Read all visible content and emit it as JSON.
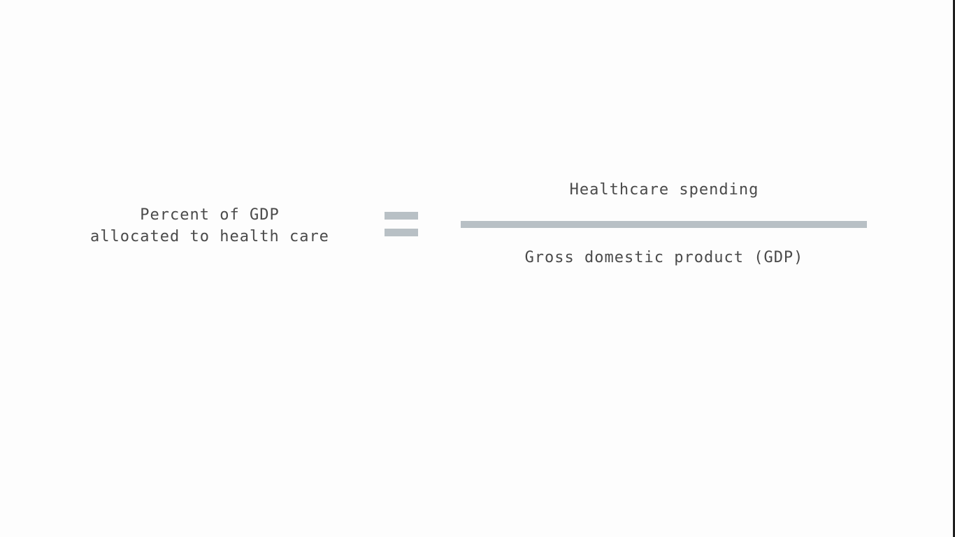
{
  "formula": {
    "lhs_line1": "Percent of GDP",
    "lhs_line2": "allocated to health care",
    "numerator": "Healthcare spending",
    "denominator": "Gross domestic product (GDP)"
  },
  "colors": {
    "text": "#4a4a4a",
    "symbol": "#b8c0c5",
    "background": "#fdfdfd"
  }
}
